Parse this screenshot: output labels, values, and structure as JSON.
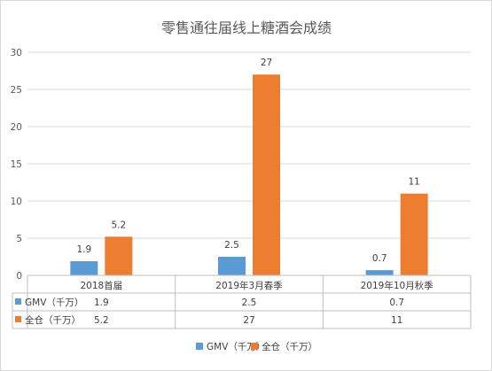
{
  "chart_data": {
    "type": "bar",
    "title": "零售通往届线上糖酒会成绩",
    "categories": [
      "2018首届",
      "2019年3月春季",
      "2019年10月秋季"
    ],
    "series": [
      {
        "name": "GMV（千万）",
        "values": [
          1.9,
          2.5,
          0.7
        ],
        "data_labels": [
          "1.9",
          "2.5",
          "0.7"
        ],
        "color": "#5b9bd5"
      },
      {
        "name": "全仓（千万）",
        "values": [
          5.2,
          27,
          11
        ],
        "data_labels": [
          "5.2",
          "27",
          "11"
        ],
        "color": "#ed7d31"
      }
    ],
    "ylim": [
      0,
      30
    ],
    "yticks": [
      "0",
      "5",
      "10",
      "15",
      "20",
      "25",
      "30"
    ],
    "grid": true,
    "legend": "bottom",
    "data_table": true
  }
}
